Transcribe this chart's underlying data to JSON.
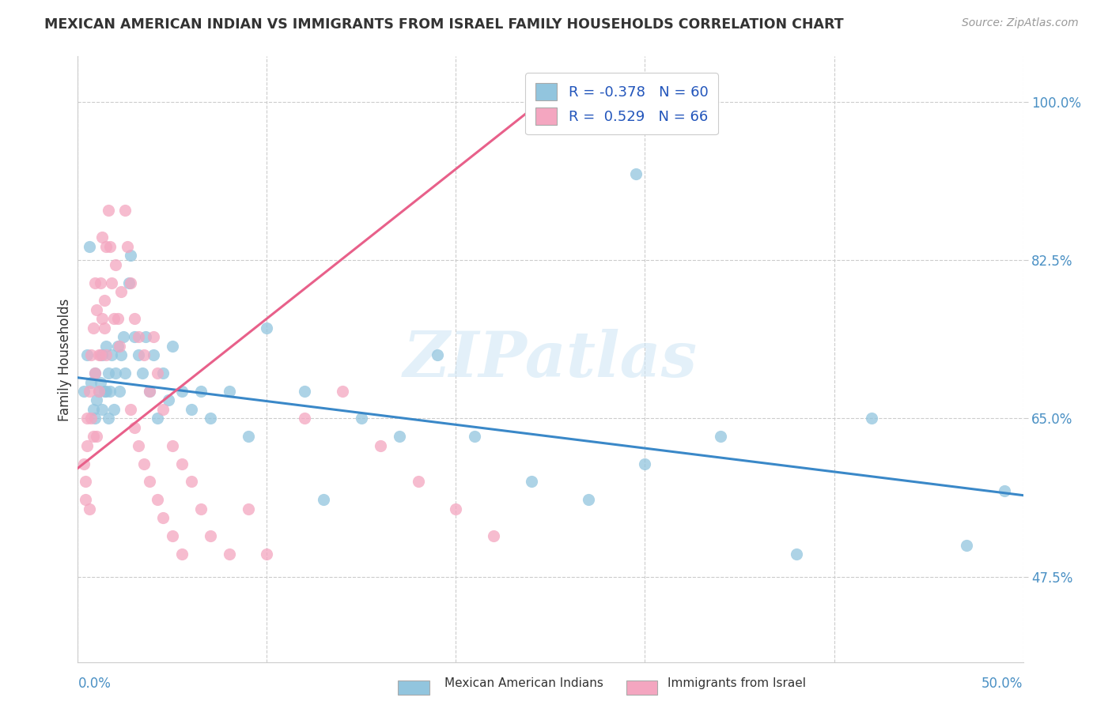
{
  "title": "MEXICAN AMERICAN INDIAN VS IMMIGRANTS FROM ISRAEL FAMILY HOUSEHOLDS CORRELATION CHART",
  "source": "Source: ZipAtlas.com",
  "ylabel": "Family Households",
  "y_ticks": [
    0.475,
    0.65,
    0.825,
    1.0
  ],
  "y_tick_labels": [
    "47.5%",
    "65.0%",
    "82.5%",
    "100.0%"
  ],
  "x_min": 0.0,
  "x_max": 0.5,
  "y_min": 0.38,
  "y_max": 1.05,
  "blue_r": "-0.378",
  "blue_n": "60",
  "pink_r": "0.529",
  "pink_n": "66",
  "legend_label_blue": "Mexican American Indians",
  "legend_label_pink": "Immigrants from Israel",
  "blue_color": "#92c5de",
  "pink_color": "#f4a6c0",
  "blue_line_color": "#3a88c8",
  "pink_line_color": "#e8608a",
  "blue_line_y0": 0.695,
  "blue_line_y1": 0.565,
  "pink_line_x0": 0.0,
  "pink_line_x1": 0.245,
  "pink_line_y0": 0.595,
  "pink_line_y1": 1.0,
  "watermark": "ZIPatlas",
  "blue_scatter_x": [
    0.003,
    0.005,
    0.006,
    0.007,
    0.008,
    0.009,
    0.009,
    0.01,
    0.011,
    0.012,
    0.013,
    0.013,
    0.014,
    0.015,
    0.015,
    0.016,
    0.016,
    0.017,
    0.018,
    0.019,
    0.02,
    0.021,
    0.022,
    0.023,
    0.024,
    0.025,
    0.027,
    0.028,
    0.03,
    0.032,
    0.034,
    0.036,
    0.038,
    0.04,
    0.042,
    0.045,
    0.048,
    0.05,
    0.055,
    0.06,
    0.065,
    0.07,
    0.08,
    0.09,
    0.1,
    0.12,
    0.13,
    0.15,
    0.17,
    0.19,
    0.21,
    0.24,
    0.27,
    0.3,
    0.34,
    0.38,
    0.42,
    0.47,
    0.49,
    0.295
  ],
  "blue_scatter_y": [
    0.68,
    0.72,
    0.84,
    0.69,
    0.66,
    0.7,
    0.65,
    0.67,
    0.68,
    0.69,
    0.72,
    0.66,
    0.68,
    0.73,
    0.68,
    0.65,
    0.7,
    0.68,
    0.72,
    0.66,
    0.7,
    0.73,
    0.68,
    0.72,
    0.74,
    0.7,
    0.8,
    0.83,
    0.74,
    0.72,
    0.7,
    0.74,
    0.68,
    0.72,
    0.65,
    0.7,
    0.67,
    0.73,
    0.68,
    0.66,
    0.68,
    0.65,
    0.68,
    0.63,
    0.75,
    0.68,
    0.56,
    0.65,
    0.63,
    0.72,
    0.63,
    0.58,
    0.56,
    0.6,
    0.63,
    0.5,
    0.65,
    0.51,
    0.57,
    0.92
  ],
  "pink_scatter_x": [
    0.003,
    0.004,
    0.004,
    0.005,
    0.005,
    0.006,
    0.006,
    0.007,
    0.007,
    0.008,
    0.008,
    0.009,
    0.009,
    0.01,
    0.01,
    0.011,
    0.011,
    0.012,
    0.012,
    0.013,
    0.013,
    0.014,
    0.014,
    0.015,
    0.015,
    0.016,
    0.017,
    0.018,
    0.019,
    0.02,
    0.021,
    0.022,
    0.023,
    0.025,
    0.026,
    0.028,
    0.03,
    0.032,
    0.035,
    0.038,
    0.04,
    0.042,
    0.045,
    0.05,
    0.055,
    0.06,
    0.065,
    0.07,
    0.08,
    0.09,
    0.1,
    0.12,
    0.14,
    0.16,
    0.18,
    0.2,
    0.22,
    0.028,
    0.03,
    0.032,
    0.035,
    0.038,
    0.042,
    0.045,
    0.05,
    0.055
  ],
  "pink_scatter_y": [
    0.6,
    0.58,
    0.56,
    0.65,
    0.62,
    0.68,
    0.55,
    0.72,
    0.65,
    0.75,
    0.63,
    0.8,
    0.7,
    0.77,
    0.63,
    0.68,
    0.72,
    0.8,
    0.72,
    0.85,
    0.76,
    0.75,
    0.78,
    0.84,
    0.72,
    0.88,
    0.84,
    0.8,
    0.76,
    0.82,
    0.76,
    0.73,
    0.79,
    0.88,
    0.84,
    0.8,
    0.76,
    0.74,
    0.72,
    0.68,
    0.74,
    0.7,
    0.66,
    0.62,
    0.6,
    0.58,
    0.55,
    0.52,
    0.5,
    0.55,
    0.5,
    0.65,
    0.68,
    0.62,
    0.58,
    0.55,
    0.52,
    0.66,
    0.64,
    0.62,
    0.6,
    0.58,
    0.56,
    0.54,
    0.52,
    0.5
  ],
  "grid_color": "#cccccc",
  "title_color": "#333333",
  "axis_label_color": "#4a90c4",
  "source_color": "#999999",
  "legend_text_color": "#2255bb"
}
